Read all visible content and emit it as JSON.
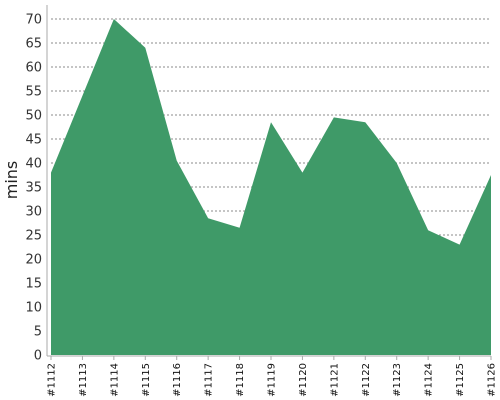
{
  "chart_data": {
    "type": "area",
    "title": "",
    "xlabel": "",
    "ylabel": "mins",
    "categories": [
      "#1112",
      "#1113",
      "#1114",
      "#1115",
      "#1116",
      "#1117",
      "#1118",
      "#1119",
      "#1120",
      "#1121",
      "#1122",
      "#1123",
      "#1124",
      "#1125",
      "#1126"
    ],
    "values": [
      38,
      54,
      70,
      64,
      40.5,
      28.5,
      26.5,
      48.5,
      38,
      49.5,
      48.5,
      40,
      26,
      23,
      37.5
    ],
    "ylim": [
      0,
      70
    ],
    "y_ticks": [
      0,
      5,
      10,
      15,
      20,
      25,
      30,
      35,
      40,
      45,
      50,
      55,
      60,
      65,
      70
    ],
    "grid": true,
    "legend": "none",
    "colors": {
      "fill": "#3f9a68",
      "grid": "#666666",
      "axis": "#aaaaaa"
    }
  }
}
